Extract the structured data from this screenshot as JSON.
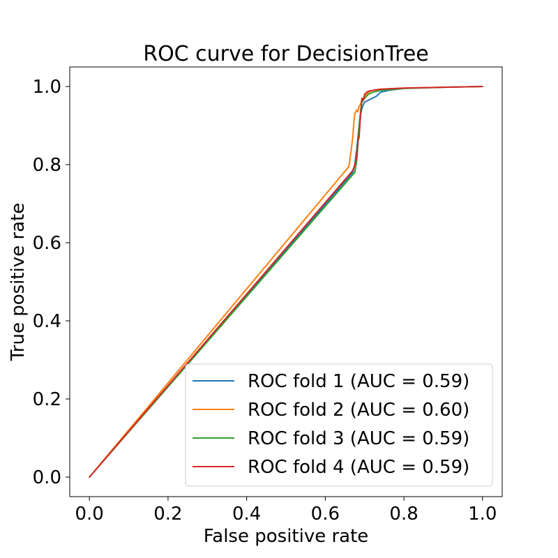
{
  "chart_data": {
    "type": "line",
    "title": "ROC curve for DecisionTree",
    "xlabel": "False positive rate",
    "ylabel": "True positive rate",
    "xlim": [
      -0.05,
      1.05
    ],
    "ylim": [
      -0.05,
      1.05
    ],
    "xticks": [
      0.0,
      0.2,
      0.4,
      0.6,
      0.8,
      1.0
    ],
    "yticks": [
      0.0,
      0.2,
      0.4,
      0.6,
      0.8,
      1.0
    ],
    "xtick_labels": [
      "0.0",
      "0.2",
      "0.4",
      "0.6",
      "0.8",
      "1.0"
    ],
    "ytick_labels": [
      "0.0",
      "0.2",
      "0.4",
      "0.6",
      "0.8",
      "1.0"
    ],
    "grid": false,
    "legend_placement": "lower right",
    "series": [
      {
        "name": "ROC fold 1 (AUC = 0.59)",
        "color": "#1f77b4",
        "x": [
          0.0,
          0.67,
          0.675,
          0.68,
          0.685,
          0.69,
          0.695,
          0.7,
          0.71,
          0.72,
          0.73,
          0.74,
          0.76,
          0.8,
          0.9,
          1.0
        ],
        "y": [
          0.0,
          0.78,
          0.8,
          0.84,
          0.89,
          0.93,
          0.95,
          0.96,
          0.965,
          0.97,
          0.975,
          0.985,
          0.99,
          0.995,
          0.998,
          1.0
        ]
      },
      {
        "name": "ROC fold 2 (AUC = 0.60)",
        "color": "#ff7f0e",
        "x": [
          0.0,
          0.66,
          0.665,
          0.67,
          0.672,
          0.675,
          0.68,
          0.683,
          0.686,
          0.69,
          0.693,
          0.697,
          0.7,
          0.705,
          0.71,
          0.72,
          0.74,
          0.8,
          0.9,
          1.0
        ],
        "y": [
          0.0,
          0.795,
          0.83,
          0.87,
          0.9,
          0.93,
          0.94,
          0.935,
          0.95,
          0.955,
          0.965,
          0.97,
          0.975,
          0.98,
          0.985,
          0.99,
          0.993,
          0.996,
          0.998,
          1.0
        ]
      },
      {
        "name": "ROC fold 3 (AUC = 0.59)",
        "color": "#2ca02c",
        "x": [
          0.0,
          0.675,
          0.68,
          0.683,
          0.686,
          0.69,
          0.693,
          0.697,
          0.7,
          0.705,
          0.71,
          0.72,
          0.74,
          0.8,
          0.9,
          1.0
        ],
        "y": [
          0.0,
          0.78,
          0.81,
          0.85,
          0.9,
          0.94,
          0.96,
          0.965,
          0.97,
          0.975,
          0.98,
          0.985,
          0.99,
          0.995,
          0.998,
          1.0
        ]
      },
      {
        "name": "ROC fold 4 (AUC = 0.59)",
        "color": "#d62728",
        "x": [
          0.0,
          0.67,
          0.675,
          0.68,
          0.683,
          0.686,
          0.69,
          0.693,
          0.697,
          0.7,
          0.705,
          0.71,
          0.72,
          0.74,
          0.8,
          0.9,
          1.0
        ],
        "y": [
          0.0,
          0.785,
          0.8,
          0.82,
          0.86,
          0.87,
          0.93,
          0.97,
          0.965,
          0.98,
          0.985,
          0.988,
          0.99,
          0.993,
          0.996,
          0.998,
          1.0
        ]
      }
    ]
  }
}
